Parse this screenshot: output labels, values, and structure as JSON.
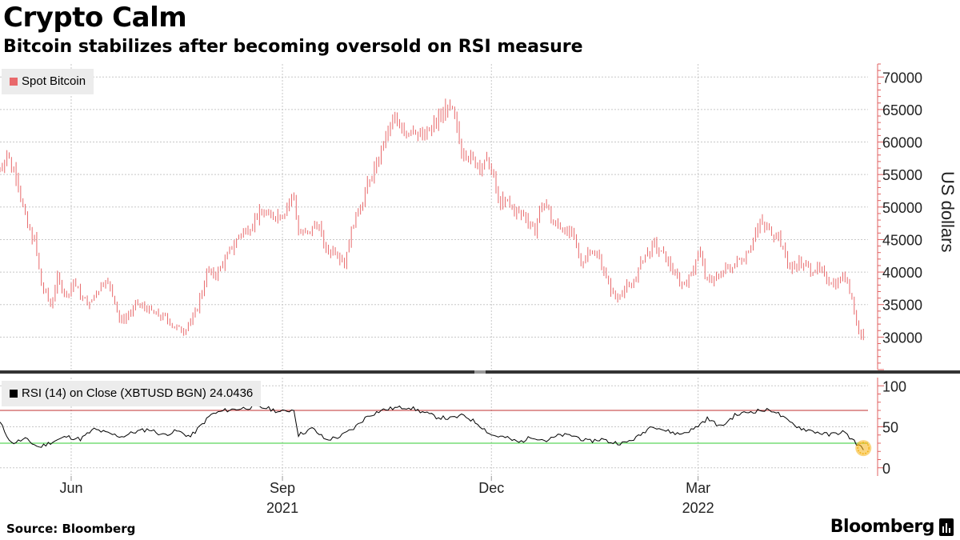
{
  "header": {
    "title": "Crypto Calm",
    "subtitle": "Bitcoin stabilizes after becoming oversold on RSI measure"
  },
  "footer": {
    "source": "Source: Bloomberg",
    "brand": "Bloomberg"
  },
  "colors": {
    "price_line": "#e8696b",
    "rsi_line": "#000000",
    "overbought_line": "#c03030",
    "oversold_line": "#33cc33",
    "highlight": "#f5b316",
    "grid": "#c8c8c8",
    "axis": "#e06060"
  },
  "chart_data": [
    {
      "type": "line",
      "style": "hlc-bars",
      "series": [
        {
          "name": "Spot Bitcoin",
          "x": [
            "2021-05-01",
            "2021-05-04",
            "2021-05-08",
            "2021-05-11",
            "2021-05-13",
            "2021-05-16",
            "2021-05-19",
            "2021-05-23",
            "2021-05-26",
            "2021-05-30",
            "2021-06-02",
            "2021-06-06",
            "2021-06-09",
            "2021-06-13",
            "2021-06-16",
            "2021-06-20",
            "2021-06-22",
            "2021-06-26",
            "2021-06-30",
            "2021-07-04",
            "2021-07-08",
            "2021-07-12",
            "2021-07-16",
            "2021-07-20",
            "2021-07-23",
            "2021-07-26",
            "2021-07-30",
            "2021-08-03",
            "2021-08-07",
            "2021-08-12",
            "2021-08-16",
            "2021-08-20",
            "2021-08-23",
            "2021-08-28",
            "2021-09-01",
            "2021-09-06",
            "2021-09-08",
            "2021-09-12",
            "2021-09-16",
            "2021-09-20",
            "2021-09-24",
            "2021-09-28",
            "2021-10-01",
            "2021-10-05",
            "2021-10-09",
            "2021-10-13",
            "2021-10-17",
            "2021-10-20",
            "2021-10-24",
            "2021-10-28",
            "2021-11-02",
            "2021-11-06",
            "2021-11-10",
            "2021-11-14",
            "2021-11-18",
            "2021-11-22",
            "2021-11-26",
            "2021-11-30",
            "2021-12-04",
            "2021-12-08",
            "2021-12-12",
            "2021-12-16",
            "2021-12-20",
            "2021-12-24",
            "2021-12-28",
            "2022-01-01",
            "2022-01-05",
            "2022-01-09",
            "2022-01-13",
            "2022-01-17",
            "2022-01-21",
            "2022-01-24",
            "2022-01-28",
            "2022-02-01",
            "2022-02-05",
            "2022-02-10",
            "2022-02-14",
            "2022-02-18",
            "2022-02-22",
            "2022-02-26",
            "2022-03-01",
            "2022-03-05",
            "2022-03-10",
            "2022-03-14",
            "2022-03-18",
            "2022-03-22",
            "2022-03-28",
            "2022-04-01",
            "2022-04-05",
            "2022-04-10",
            "2022-04-14",
            "2022-04-18",
            "2022-04-22",
            "2022-04-26",
            "2022-04-30",
            "2022-05-04",
            "2022-05-07",
            "2022-05-09",
            "2022-05-11",
            "2022-05-12"
          ],
          "values": [
            56000,
            58000,
            55000,
            50000,
            47000,
            45000,
            38000,
            35000,
            39000,
            36000,
            38500,
            36000,
            35000,
            37500,
            39000,
            35500,
            32500,
            33500,
            35000,
            34500,
            33500,
            33000,
            31500,
            31000,
            32500,
            34500,
            40000,
            39500,
            42000,
            45000,
            46500,
            48000,
            49500,
            48500,
            49000,
            51500,
            46500,
            45500,
            48000,
            43000,
            43500,
            41500,
            46500,
            50500,
            54000,
            57500,
            61500,
            63500,
            61500,
            62000,
            61000,
            62500,
            65000,
            64500,
            59000,
            57500,
            56000,
            57000,
            51000,
            50500,
            49000,
            48500,
            46500,
            51000,
            47500,
            47000,
            45500,
            41500,
            43500,
            42500,
            38000,
            36000,
            37500,
            38500,
            42000,
            44000,
            42500,
            40500,
            38000,
            39500,
            43500,
            38500,
            39500,
            40500,
            41500,
            43000,
            47500,
            46500,
            45500,
            40500,
            41500,
            40500,
            40500,
            39000,
            38500,
            39500,
            36000,
            32000,
            30000,
            30500
          ]
        }
      ],
      "legend": [
        "Spot Bitcoin"
      ],
      "ylabel": "US dollars",
      "ylim": [
        25000,
        72000
      ],
      "yticks": [
        30000,
        35000,
        40000,
        45000,
        50000,
        55000,
        60000,
        65000,
        70000
      ],
      "y_axis_side": "right",
      "grid": true
    },
    {
      "type": "line",
      "series": [
        {
          "name": "RSI (14)  on Close (XBTUSD BGN) 24.0436",
          "x": [
            "2021-05-01",
            "2021-05-06",
            "2021-05-12",
            "2021-05-18",
            "2021-05-24",
            "2021-05-30",
            "2021-06-05",
            "2021-06-11",
            "2021-06-17",
            "2021-06-23",
            "2021-06-29",
            "2021-07-05",
            "2021-07-11",
            "2021-07-17",
            "2021-07-23",
            "2021-07-27",
            "2021-08-01",
            "2021-08-07",
            "2021-08-13",
            "2021-08-19",
            "2021-08-25",
            "2021-08-31",
            "2021-09-06",
            "2021-09-08",
            "2021-09-14",
            "2021-09-20",
            "2021-09-26",
            "2021-10-02",
            "2021-10-08",
            "2021-10-14",
            "2021-10-20",
            "2021-10-26",
            "2021-11-01",
            "2021-11-07",
            "2021-11-13",
            "2021-11-19",
            "2021-11-25",
            "2021-12-01",
            "2021-12-07",
            "2021-12-13",
            "2021-12-19",
            "2021-12-25",
            "2021-12-31",
            "2022-01-06",
            "2022-01-12",
            "2022-01-18",
            "2022-01-22",
            "2022-01-28",
            "2022-02-03",
            "2022-02-09",
            "2022-02-15",
            "2022-02-21",
            "2022-02-27",
            "2022-03-05",
            "2022-03-11",
            "2022-03-17",
            "2022-03-23",
            "2022-03-28",
            "2022-04-03",
            "2022-04-09",
            "2022-04-15",
            "2022-04-21",
            "2022-04-27",
            "2022-05-03",
            "2022-05-07",
            "2022-05-10",
            "2022-05-12"
          ],
          "values": [
            55,
            30,
            35,
            25,
            32,
            38,
            35,
            47,
            42,
            38,
            44,
            47,
            40,
            45,
            38,
            50,
            65,
            70,
            72,
            74,
            73,
            68,
            71,
            40,
            48,
            34,
            38,
            48,
            63,
            70,
            73,
            74,
            68,
            62,
            60,
            64,
            54,
            40,
            37,
            31,
            38,
            33,
            40,
            39,
            32,
            35,
            31,
            30,
            38,
            52,
            45,
            41,
            47,
            60,
            50,
            64,
            68,
            70,
            70,
            57,
            48,
            44,
            40,
            44,
            35,
            27,
            24
          ]
        }
      ],
      "legend": [
        "RSI (14)  on Close (XBTUSD BGN) 24.0436"
      ],
      "ylim": [
        -10,
        110
      ],
      "yticks": [
        0,
        50,
        100
      ],
      "reference_lines": [
        70,
        30
      ],
      "y_axis_side": "right",
      "grid": true
    }
  ],
  "x_axis": {
    "date_range": [
      "2021-05-01",
      "2022-05-14"
    ],
    "month_ticks": [
      {
        "label": "Jun",
        "date": "2021-06-01"
      },
      {
        "label": "Sep",
        "date": "2021-09-01"
      },
      {
        "label": "Dec",
        "date": "2021-12-01"
      },
      {
        "label": "Mar",
        "date": "2022-03-01"
      }
    ],
    "year_ticks": [
      {
        "label": "2021",
        "date": "2021-09-01"
      },
      {
        "label": "2022",
        "date": "2022-03-01"
      }
    ]
  }
}
